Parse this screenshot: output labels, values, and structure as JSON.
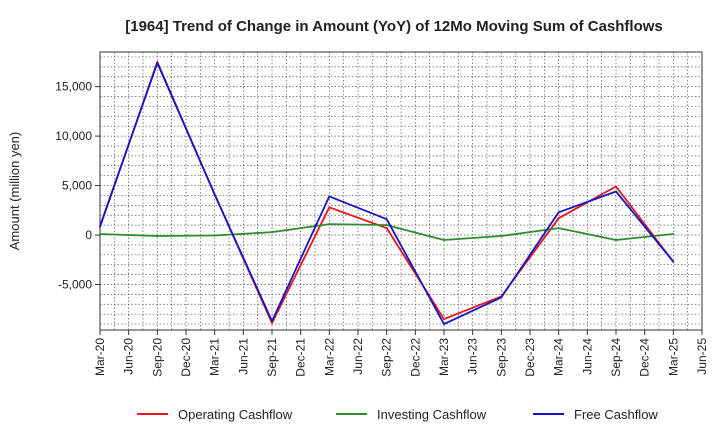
{
  "chart_data": {
    "type": "line",
    "title": "[1964]  Trend of Change in Amount (YoY) of 12Mo Moving Sum of Cashflows",
    "xlabel": "",
    "ylabel": "Amount (million yen)",
    "ylim": [
      -9600,
      18500
    ],
    "yticks": [
      15000,
      10000,
      5000,
      0,
      -5000
    ],
    "ytick_labels": [
      "15,000",
      "10,000",
      "5,000",
      "0",
      "-5,000"
    ],
    "categories": [
      "Mar-20",
      "Jun-20",
      "Sep-20",
      "Dec-20",
      "Mar-21",
      "Jun-21",
      "Sep-21",
      "Dec-21",
      "Mar-22",
      "Jun-22",
      "Sep-22",
      "Dec-22",
      "Mar-23",
      "Jun-23",
      "Sep-23",
      "Dec-23",
      "Mar-24",
      "Jun-24",
      "Sep-24",
      "Dec-24",
      "Mar-25",
      "Jun-25"
    ],
    "grid": true,
    "legend_position": "bottom",
    "series": [
      {
        "name": "Operating Cashflow",
        "color": "#e8141b",
        "points": [
          [
            0,
            800
          ],
          [
            2,
            17500
          ],
          [
            4,
            4100
          ],
          [
            6,
            -8900
          ],
          [
            8,
            2800
          ],
          [
            10,
            700
          ],
          [
            12,
            -8500
          ],
          [
            14,
            -6200
          ],
          [
            16,
            1700
          ],
          [
            18,
            4900
          ],
          [
            20,
            -2700
          ]
        ]
      },
      {
        "name": "Investing Cashflow",
        "color": "#2e8b2e",
        "points": [
          [
            0,
            100
          ],
          [
            2,
            -100
          ],
          [
            4,
            -50
          ],
          [
            6,
            300
          ],
          [
            8,
            1100
          ],
          [
            10,
            1000
          ],
          [
            12,
            -500
          ],
          [
            14,
            -100
          ],
          [
            16,
            700
          ],
          [
            18,
            -500
          ],
          [
            20,
            100
          ]
        ]
      },
      {
        "name": "Free Cashflow",
        "color": "#1414c8",
        "points": [
          [
            0,
            900
          ],
          [
            2,
            17400
          ],
          [
            4,
            4100
          ],
          [
            6,
            -8700
          ],
          [
            8,
            3900
          ],
          [
            10,
            1600
          ],
          [
            12,
            -9000
          ],
          [
            14,
            -6300
          ],
          [
            16,
            2300
          ],
          [
            18,
            4400
          ],
          [
            20,
            -2700
          ]
        ]
      }
    ]
  }
}
